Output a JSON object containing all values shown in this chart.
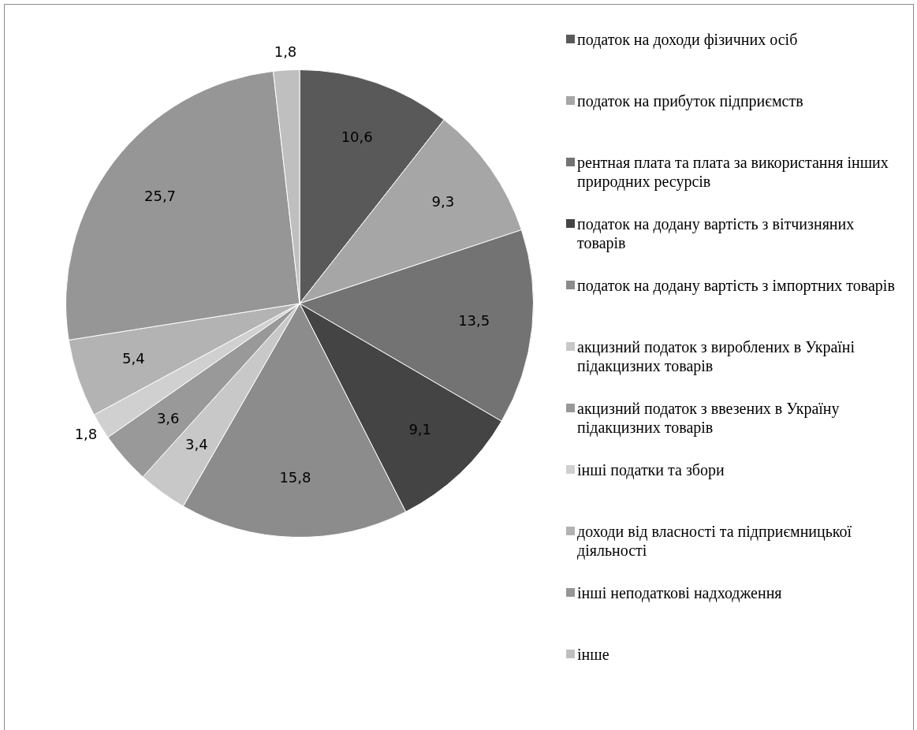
{
  "chart_data": {
    "type": "pie",
    "categories": [
      "податок на доходи фізичних осіб",
      "податок на прибуток підприємств",
      "рентная плата та плата за використання інших природних ресурсів",
      "податок на додану вартість з вітчизняних товарів",
      "податок на додану вартість з імпортних товарів",
      "акцизний податок з вироблених в Україні підакцизних товарів",
      "акцизний податок з ввезених в Україну підакцизних товарів",
      "інші податки та збори",
      "доходи від власності та підприємницької діяльності",
      "інші неподаткові надходження",
      "інше"
    ],
    "values": [
      10.6,
      9.3,
      13.5,
      9.1,
      15.8,
      3.4,
      3.6,
      1.8,
      5.4,
      25.7,
      1.8
    ],
    "value_labels": [
      "10,6",
      "9,3",
      "13,5",
      "9,1",
      "15,8",
      "3,4",
      "3,6",
      "1,8",
      "5,4",
      "25,7",
      "1,8"
    ],
    "colors": [
      "#595959",
      "#a6a6a6",
      "#737373",
      "#444444",
      "#8c8c8c",
      "#c8c8c8",
      "#999999",
      "#d0d0d0",
      "#b3b3b3",
      "#969696",
      "#bfbfbf"
    ],
    "legend": "right"
  }
}
